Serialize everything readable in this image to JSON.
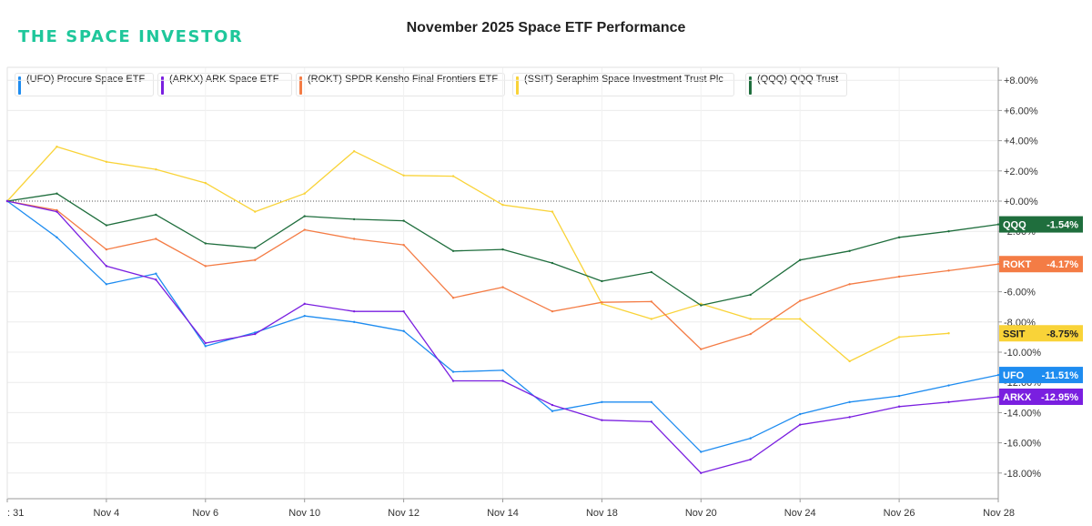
{
  "brand": "THE SPACE INVESTOR",
  "chart_data": {
    "type": "line",
    "title": "November 2025 Space ETF Performance",
    "xlabel": "",
    "ylabel": "",
    "x_index": [
      0,
      2,
      4,
      6,
      8,
      10,
      12,
      14,
      16,
      18,
      20,
      22,
      24,
      26,
      28,
      30,
      32,
      34,
      36,
      38,
      40
    ],
    "x_tick_labels": [
      ": 31",
      "Nov 4",
      "Nov 6",
      "Nov 10",
      "Nov 12",
      "Nov 14",
      "Nov 18",
      "Nov 20",
      "Nov 24",
      "Nov 26",
      "Nov 28"
    ],
    "x_tick_positions": [
      0,
      4,
      8,
      12,
      16,
      20,
      24,
      28,
      32,
      36,
      40
    ],
    "ylim": [
      -20,
      9
    ],
    "y_ticks": [
      8,
      6,
      4,
      2,
      0,
      -2,
      -4,
      -6,
      -8,
      -10,
      -12,
      -14,
      -16,
      -18
    ],
    "y_tick_labels": [
      "+8.00%",
      "+6.00%",
      "+4.00%",
      "+2.00%",
      "+0.00%",
      "-2.00%",
      "-4.00%",
      "-6.00%",
      "-8.00%",
      "-10.00%",
      "-12.00%",
      "-14.00%",
      "-16.00%",
      "-18.00%"
    ],
    "zero_line": "dotted",
    "series": [
      {
        "name": "(SSIT) Seraphim Space Investment Trust Plc",
        "tag": "SSIT",
        "last_label": "-8.75%",
        "color": "#f9d338",
        "label_text_color": "#222222",
        "values": [
          0.0,
          3.6,
          2.6,
          2.1,
          1.2,
          -0.7,
          0.5,
          3.3,
          1.7,
          1.65,
          -0.25,
          -0.7,
          -6.8,
          -7.8,
          -6.8,
          -7.8,
          -7.8,
          -10.6,
          -9.0,
          -8.75,
          null
        ]
      },
      {
        "name": "(QQQ) QQQ Trust",
        "tag": "QQQ",
        "last_label": "-1.54%",
        "color": "#1f6e3d",
        "label_text_color": "#ffffff",
        "values": [
          0.0,
          0.5,
          -1.6,
          -0.9,
          -2.8,
          -3.1,
          -1.0,
          -1.2,
          -1.3,
          -3.3,
          -3.2,
          -4.1,
          -5.3,
          -4.7,
          -6.9,
          -6.2,
          -3.9,
          -3.3,
          -2.4,
          -2.0,
          -1.54
        ]
      },
      {
        "name": "(ROKT) SPDR Kensho Final Frontiers ETF",
        "tag": "ROKT",
        "last_label": "-4.17%",
        "color": "#f47c45",
        "label_text_color": "#ffffff",
        "values": [
          0.0,
          -0.6,
          -3.2,
          -2.5,
          -4.3,
          -3.9,
          -1.9,
          -2.5,
          -2.9,
          -6.4,
          -5.7,
          -7.3,
          -6.7,
          -6.65,
          -9.8,
          -8.8,
          -6.6,
          -5.5,
          -5.0,
          -4.6,
          -4.17
        ]
      },
      {
        "name": "(UFO) Procure Space ETF",
        "tag": "UFO",
        "last_label": "-11.51%",
        "color": "#1e8cf0",
        "label_text_color": "#ffffff",
        "values": [
          0.0,
          -2.4,
          -5.5,
          -4.8,
          -9.6,
          -8.7,
          -7.6,
          -8.0,
          -8.6,
          -11.3,
          -11.2,
          -13.9,
          -13.3,
          -13.3,
          -16.6,
          -15.7,
          -14.1,
          -13.3,
          -12.9,
          -12.2,
          -11.51
        ]
      },
      {
        "name": "(ARKX) ARK Space ETF",
        "tag": "ARKX",
        "last_label": "-12.95%",
        "color": "#7a1fe0",
        "label_text_color": "#ffffff",
        "values": [
          0.0,
          -0.7,
          -4.3,
          -5.2,
          -9.4,
          -8.8,
          -6.8,
          -7.3,
          -7.3,
          -11.9,
          -11.9,
          -13.5,
          -14.5,
          -14.6,
          -18.0,
          -17.1,
          -14.8,
          -14.3,
          -13.6,
          -13.3,
          -12.95
        ]
      }
    ],
    "legend_order": [
      "(UFO) Procure Space ETF",
      "(ARKX) ARK Space ETF",
      "(ROKT) SPDR Kensho Final Frontiers ETF",
      "(SSIT) Seraphim Space Investment Trust Plc",
      "(QQQ) QQQ Trust"
    ],
    "legend_placement": "top"
  }
}
